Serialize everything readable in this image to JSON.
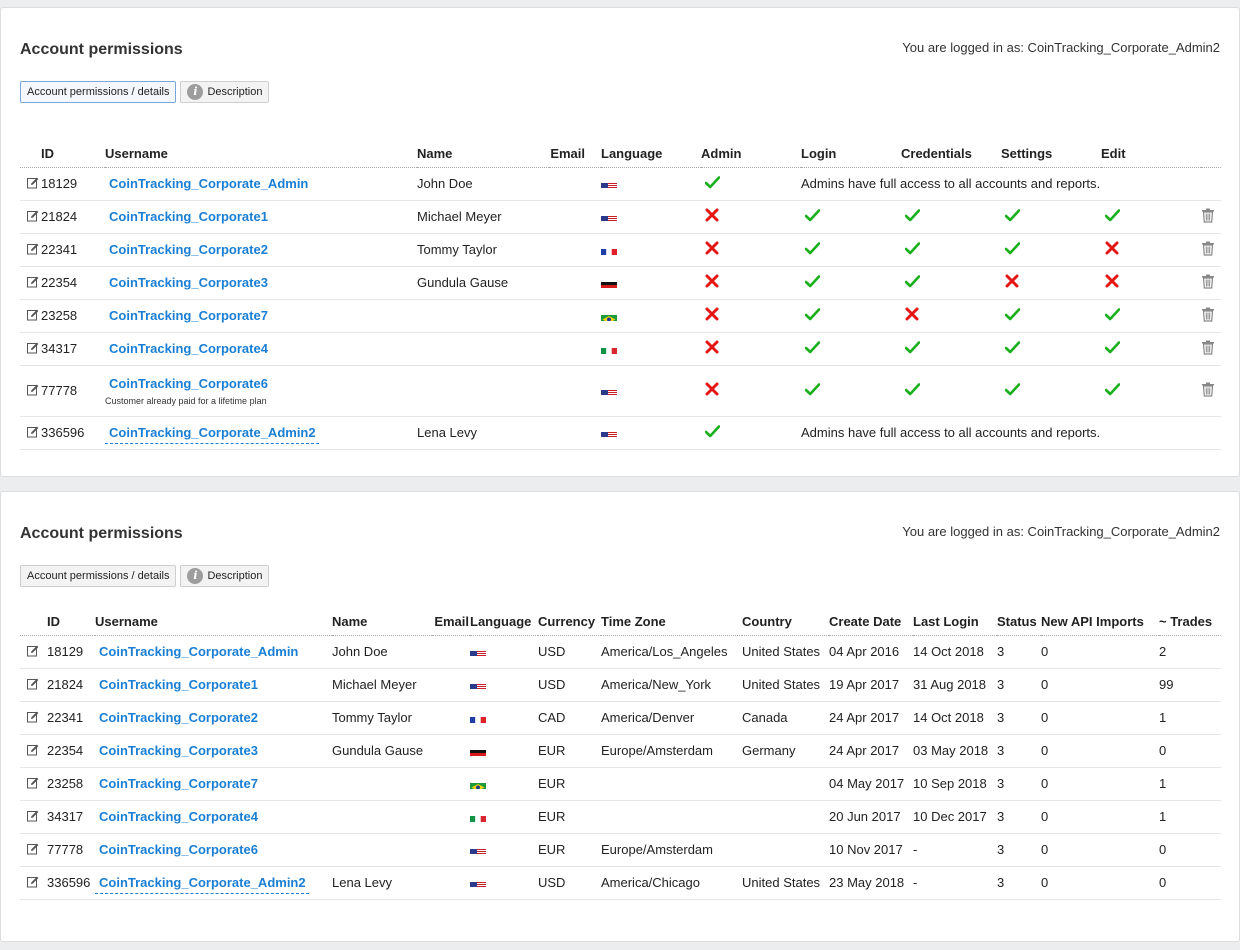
{
  "panels": [
    {
      "title": "Account permissions",
      "logged_in": "You are logged in as: CoinTracking_Corporate_Admin2",
      "tabs": {
        "details": "Account permissions / details",
        "description": "Description"
      },
      "headers": [
        "ID",
        "Username",
        "Name",
        "Email",
        "Language",
        "Admin",
        "Login",
        "Credentials",
        "Settings",
        "Edit"
      ],
      "admin_note": "Admins have full access to all accounts and reports.",
      "rows": [
        {
          "id": "18129",
          "username": "CoinTracking_Corporate_Admin",
          "name": "John Doe",
          "flag": "us",
          "admin": true
        },
        {
          "id": "21824",
          "username": "CoinTracking_Corporate1",
          "name": "Michael Meyer",
          "flag": "us",
          "admin": false,
          "login": true,
          "credentials": true,
          "settings": true,
          "edit": true
        },
        {
          "id": "22341",
          "username": "CoinTracking_Corporate2",
          "name": "Tommy Taylor",
          "flag": "fr",
          "admin": false,
          "login": true,
          "credentials": true,
          "settings": true,
          "edit": false
        },
        {
          "id": "22354",
          "username": "CoinTracking_Corporate3",
          "name": "Gundula Gause",
          "flag": "de",
          "admin": false,
          "login": true,
          "credentials": true,
          "settings": false,
          "edit": false
        },
        {
          "id": "23258",
          "username": "CoinTracking_Corporate7",
          "name": "",
          "flag": "br",
          "admin": false,
          "login": true,
          "credentials": false,
          "settings": true,
          "edit": true
        },
        {
          "id": "34317",
          "username": "CoinTracking_Corporate4",
          "name": "",
          "flag": "it",
          "admin": false,
          "login": true,
          "credentials": true,
          "settings": true,
          "edit": true
        },
        {
          "id": "77778",
          "username": "CoinTracking_Corporate6",
          "subtext": "Customer already paid for a lifetime plan",
          "name": "",
          "flag": "us",
          "admin": false,
          "login": true,
          "credentials": true,
          "settings": true,
          "edit": true
        },
        {
          "id": "336596",
          "username": "CoinTracking_Corporate_Admin2",
          "name": "Lena Levy",
          "flag": "us",
          "admin": true,
          "current": true
        }
      ]
    },
    {
      "title": "Account permissions",
      "logged_in": "You are logged in as: CoinTracking_Corporate_Admin2",
      "tabs": {
        "details": "Account permissions / details",
        "description": "Description"
      },
      "headers": [
        "ID",
        "Username",
        "Name",
        "Email",
        "Language",
        "Currency",
        "Time Zone",
        "Country",
        "Create Date",
        "Last Login",
        "Status",
        "New API Imports",
        "~ Trades"
      ],
      "rows": [
        {
          "id": "18129",
          "username": "CoinTracking_Corporate_Admin",
          "name": "John Doe",
          "flag": "us",
          "currency": "USD",
          "timezone": "America/Los_Angeles",
          "country": "United States",
          "created": "04 Apr 2016",
          "last_login": "14 Oct 2018",
          "status": "3",
          "api_imports": "0",
          "trades": "2"
        },
        {
          "id": "21824",
          "username": "CoinTracking_Corporate1",
          "name": "Michael Meyer",
          "flag": "us",
          "currency": "USD",
          "timezone": "America/New_York",
          "country": "United States",
          "created": "19 Apr 2017",
          "last_login": "31 Aug 2018",
          "status": "3",
          "api_imports": "0",
          "trades": "99"
        },
        {
          "id": "22341",
          "username": "CoinTracking_Corporate2",
          "name": "Tommy Taylor",
          "flag": "fr",
          "currency": "CAD",
          "timezone": "America/Denver",
          "country": "Canada",
          "created": "24 Apr 2017",
          "last_login": "14 Oct 2018",
          "status": "3",
          "api_imports": "0",
          "trades": "1"
        },
        {
          "id": "22354",
          "username": "CoinTracking_Corporate3",
          "name": "Gundula Gause",
          "flag": "de",
          "currency": "EUR",
          "timezone": "Europe/Amsterdam",
          "country": "Germany",
          "created": "24 Apr 2017",
          "last_login": "03 May 2018",
          "status": "3",
          "api_imports": "0",
          "trades": "0"
        },
        {
          "id": "23258",
          "username": "CoinTracking_Corporate7",
          "name": "",
          "flag": "br",
          "currency": "EUR",
          "timezone": "",
          "country": "",
          "created": "04 May 2017",
          "last_login": "10 Sep 2018",
          "status": "3",
          "api_imports": "0",
          "trades": "1"
        },
        {
          "id": "34317",
          "username": "CoinTracking_Corporate4",
          "name": "",
          "flag": "it",
          "currency": "EUR",
          "timezone": "",
          "country": "",
          "created": "20 Jun 2017",
          "last_login": "10 Dec 2017",
          "status": "3",
          "api_imports": "0",
          "trades": "1"
        },
        {
          "id": "77778",
          "username": "CoinTracking_Corporate6",
          "name": "",
          "flag": "us",
          "currency": "EUR",
          "timezone": "Europe/Amsterdam",
          "country": "",
          "created": "10 Nov 2017",
          "last_login": "-",
          "status": "3",
          "api_imports": "0",
          "trades": "0"
        },
        {
          "id": "336596",
          "username": "CoinTracking_Corporate_Admin2",
          "name": "Lena Levy",
          "flag": "us",
          "currency": "USD",
          "timezone": "America/Chicago",
          "country": "United States",
          "created": "23 May 2018",
          "last_login": "-",
          "status": "3",
          "api_imports": "0",
          "trades": "0",
          "current": true
        }
      ]
    }
  ],
  "icons": {
    "edit": "edit-icon",
    "trash": "trash-icon",
    "info": "info-icon",
    "check": "check-icon",
    "cross": "cross-icon"
  },
  "colors": {
    "link": "#1a7fd4",
    "check": "#19b01c",
    "cross": "#e51616"
  }
}
